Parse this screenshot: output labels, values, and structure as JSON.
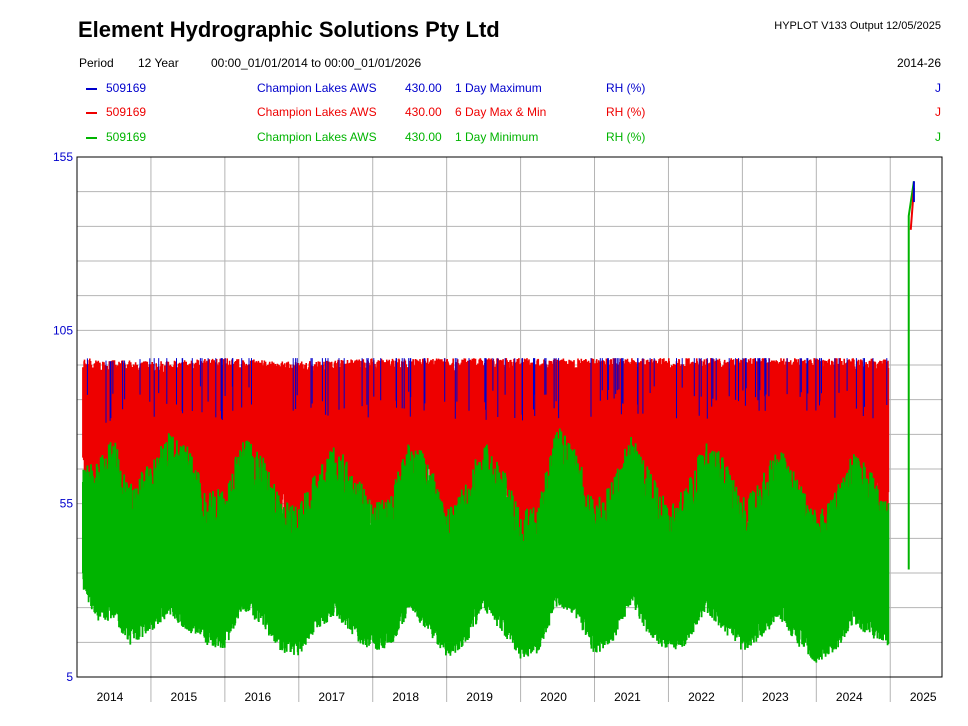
{
  "header": {
    "title": "Element Hydrographic Solutions Pty Ltd",
    "program": "HYPLOT V133  Output 12/05/2025",
    "period_label": "Period",
    "period_value": "12 Year",
    "period_range": "00:00_01/01/2014 to 00:00_01/01/2026",
    "period_code": "2014-26"
  },
  "legend": [
    {
      "site": "509169",
      "name": "Champion Lakes AWS",
      "varcode": "430.00",
      "stat": "1 Day Maximum",
      "unit": "RH (%)",
      "flag": "J",
      "color": "#0000cc"
    },
    {
      "site": "509169",
      "name": "Champion Lakes AWS",
      "varcode": "430.00",
      "stat": "6 Day Max & Min",
      "unit": "RH (%)",
      "flag": "J",
      "color": "#ee0000"
    },
    {
      "site": "509169",
      "name": "Champion Lakes AWS",
      "varcode": "430.00",
      "stat": "1 Day Minimum",
      "unit": "RH (%)",
      "flag": "J",
      "color": "#00b400"
    }
  ],
  "chart_data": {
    "type": "line",
    "x_axis": {
      "range": [
        2014,
        2025.7
      ],
      "tick_labels": [
        "2014",
        "2015",
        "2016",
        "2017",
        "2018",
        "2019",
        "2020",
        "2021",
        "2022",
        "2023",
        "2024",
        "2025"
      ]
    },
    "y_axis": {
      "range": [
        5,
        155
      ],
      "tick_labels": [
        "155",
        "105",
        "55",
        "5"
      ],
      "minor_step": 10
    },
    "grid": true,
    "data_start": 2014.08,
    "data_end": 2025.32,
    "series": [
      {
        "name": "1 Day Maximum",
        "color": "#0000cc",
        "envelope_upper": [
          [
            2014.1,
            97
          ],
          [
            2014.5,
            96
          ],
          [
            2015.0,
            97
          ],
          [
            2015.5,
            97
          ],
          [
            2016.0,
            97
          ],
          [
            2016.5,
            97
          ],
          [
            2017.0,
            97
          ],
          [
            2017.5,
            97
          ],
          [
            2018.0,
            97
          ],
          [
            2018.5,
            97
          ],
          [
            2019.0,
            97
          ],
          [
            2019.5,
            97
          ],
          [
            2020.0,
            97
          ],
          [
            2020.5,
            97
          ],
          [
            2021.0,
            97
          ],
          [
            2021.5,
            97
          ],
          [
            2022.0,
            97
          ],
          [
            2022.5,
            97
          ],
          [
            2023.0,
            97
          ],
          [
            2023.5,
            97
          ],
          [
            2024.0,
            97
          ],
          [
            2024.5,
            97
          ],
          [
            2024.98,
            97
          ]
        ]
      },
      {
        "name": "6 Day Max & Min",
        "color": "#ee0000",
        "envelope_upper": [
          [
            2014.1,
            97
          ],
          [
            2015.0,
            96
          ],
          [
            2016.0,
            97
          ],
          [
            2017.0,
            96
          ],
          [
            2018.0,
            97
          ],
          [
            2019.0,
            97
          ],
          [
            2020.0,
            97
          ],
          [
            2021.0,
            97
          ],
          [
            2022.0,
            97
          ],
          [
            2023.0,
            97
          ],
          [
            2024.0,
            97
          ],
          [
            2024.98,
            97
          ]
        ],
        "envelope_lower": [
          [
            2014.1,
            75
          ],
          [
            2014.25,
            68
          ],
          [
            2014.45,
            62
          ],
          [
            2014.6,
            50
          ],
          [
            2014.8,
            56
          ],
          [
            2015.0,
            74
          ],
          [
            2015.25,
            76
          ],
          [
            2015.5,
            70
          ],
          [
            2015.75,
            62
          ],
          [
            2016.0,
            64
          ],
          [
            2016.25,
            74
          ],
          [
            2016.5,
            72
          ],
          [
            2016.75,
            64
          ],
          [
            2017.0,
            58
          ],
          [
            2017.25,
            62
          ],
          [
            2017.5,
            72
          ],
          [
            2017.75,
            68
          ],
          [
            2018.0,
            60
          ],
          [
            2018.25,
            56
          ],
          [
            2018.5,
            70
          ],
          [
            2018.75,
            72
          ],
          [
            2019.0,
            60
          ],
          [
            2019.25,
            56
          ],
          [
            2019.5,
            74
          ],
          [
            2019.75,
            68
          ],
          [
            2020.0,
            55
          ],
          [
            2020.25,
            54
          ],
          [
            2020.5,
            76
          ],
          [
            2020.75,
            72
          ],
          [
            2021.0,
            60
          ],
          [
            2021.25,
            62
          ],
          [
            2021.5,
            74
          ],
          [
            2021.75,
            66
          ],
          [
            2022.0,
            58
          ],
          [
            2022.25,
            60
          ],
          [
            2022.5,
            74
          ],
          [
            2022.75,
            70
          ],
          [
            2023.0,
            60
          ],
          [
            2023.25,
            62
          ],
          [
            2023.5,
            72
          ],
          [
            2023.75,
            64
          ],
          [
            2024.0,
            56
          ],
          [
            2024.25,
            58
          ],
          [
            2024.5,
            72
          ],
          [
            2024.75,
            66
          ],
          [
            2024.98,
            60
          ]
        ]
      },
      {
        "name": "1 Day Minimum",
        "color": "#00b400",
        "envelope_upper": [
          [
            2014.1,
            58
          ],
          [
            2014.3,
            60
          ],
          [
            2014.5,
            66
          ],
          [
            2014.7,
            52
          ],
          [
            2015.0,
            60
          ],
          [
            2015.25,
            68
          ],
          [
            2015.5,
            63
          ],
          [
            2015.75,
            50
          ],
          [
            2016.0,
            52
          ],
          [
            2016.25,
            66
          ],
          [
            2016.5,
            61
          ],
          [
            2016.75,
            48
          ],
          [
            2017.0,
            46
          ],
          [
            2017.25,
            57
          ],
          [
            2017.5,
            64
          ],
          [
            2017.75,
            56
          ],
          [
            2018.0,
            47
          ],
          [
            2018.25,
            50
          ],
          [
            2018.5,
            66
          ],
          [
            2018.75,
            60
          ],
          [
            2019.0,
            45
          ],
          [
            2019.25,
            52
          ],
          [
            2019.5,
            66
          ],
          [
            2019.75,
            58
          ],
          [
            2020.0,
            44
          ],
          [
            2020.25,
            48
          ],
          [
            2020.5,
            70
          ],
          [
            2020.75,
            62
          ],
          [
            2021.0,
            47
          ],
          [
            2021.25,
            54
          ],
          [
            2021.5,
            68
          ],
          [
            2021.75,
            56
          ],
          [
            2022.0,
            46
          ],
          [
            2022.25,
            52
          ],
          [
            2022.5,
            66
          ],
          [
            2022.75,
            60
          ],
          [
            2023.0,
            48
          ],
          [
            2023.25,
            54
          ],
          [
            2023.5,
            64
          ],
          [
            2023.75,
            54
          ],
          [
            2024.0,
            44
          ],
          [
            2024.25,
            50
          ],
          [
            2024.5,
            62
          ],
          [
            2024.75,
            56
          ],
          [
            2024.98,
            48
          ]
        ],
        "envelope_lower": [
          [
            2014.1,
            29
          ],
          [
            2014.3,
            20
          ],
          [
            2014.5,
            22
          ],
          [
            2014.7,
            14
          ],
          [
            2015.0,
            18
          ],
          [
            2015.25,
            23
          ],
          [
            2015.5,
            18
          ],
          [
            2015.75,
            14
          ],
          [
            2016.0,
            13
          ],
          [
            2016.25,
            24
          ],
          [
            2016.5,
            20
          ],
          [
            2016.75,
            12
          ],
          [
            2017.0,
            11
          ],
          [
            2017.25,
            19
          ],
          [
            2017.5,
            22
          ],
          [
            2017.75,
            16
          ],
          [
            2018.0,
            12
          ],
          [
            2018.25,
            14
          ],
          [
            2018.5,
            24
          ],
          [
            2018.75,
            18
          ],
          [
            2019.0,
            10
          ],
          [
            2019.25,
            14
          ],
          [
            2019.5,
            24
          ],
          [
            2019.75,
            18
          ],
          [
            2020.0,
            10
          ],
          [
            2020.25,
            12
          ],
          [
            2020.5,
            26
          ],
          [
            2020.75,
            22
          ],
          [
            2021.0,
            11
          ],
          [
            2021.25,
            15
          ],
          [
            2021.5,
            26
          ],
          [
            2021.75,
            16
          ],
          [
            2022.0,
            12
          ],
          [
            2022.25,
            14
          ],
          [
            2022.5,
            24
          ],
          [
            2022.75,
            18
          ],
          [
            2023.0,
            12
          ],
          [
            2023.25,
            16
          ],
          [
            2023.5,
            22
          ],
          [
            2023.75,
            14
          ],
          [
            2024.0,
            9
          ],
          [
            2024.25,
            12
          ],
          [
            2024.5,
            20
          ],
          [
            2024.75,
            16
          ],
          [
            2024.98,
            14
          ]
        ]
      }
    ],
    "final_spike": {
      "x": [
        2025.25,
        2025.32
      ],
      "y_from": 36,
      "y_to": 148
    }
  }
}
